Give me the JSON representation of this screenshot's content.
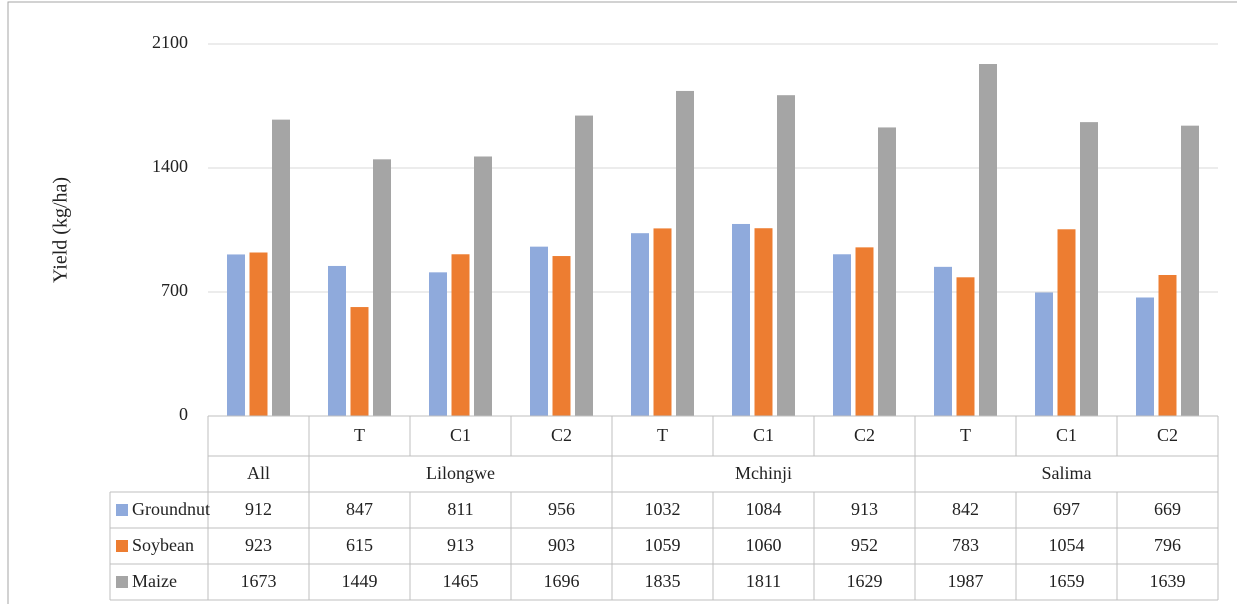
{
  "chart_data": {
    "type": "bar",
    "y_label": "Yield (kg/ha)",
    "groups": [
      {
        "name": "All",
        "categories": [
          null
        ]
      },
      {
        "name": "Lilongwe",
        "categories": [
          "T",
          "C1",
          "C2"
        ]
      },
      {
        "name": "Mchinji",
        "categories": [
          "T",
          "C1",
          "C2"
        ]
      },
      {
        "name": "Salima",
        "categories": [
          "T",
          "C1",
          "C2"
        ]
      }
    ],
    "series": [
      {
        "name": "Groundnut",
        "color": "#8faadc",
        "values": [
          912,
          847,
          811,
          956,
          1032,
          1084,
          913,
          842,
          697,
          669
        ]
      },
      {
        "name": "Soybean",
        "color": "#ed7d31",
        "values": [
          923,
          615,
          913,
          903,
          1059,
          1060,
          952,
          783,
          1054,
          796
        ]
      },
      {
        "name": "Maize",
        "color": "#a5a5a5",
        "values": [
          1673,
          1449,
          1465,
          1696,
          1835,
          1811,
          1629,
          1987,
          1659,
          1639
        ]
      }
    ],
    "ylim": [
      0,
      2100
    ],
    "yticks": [
      0,
      700,
      1400,
      2100
    ],
    "grid": true,
    "data_table": true
  }
}
